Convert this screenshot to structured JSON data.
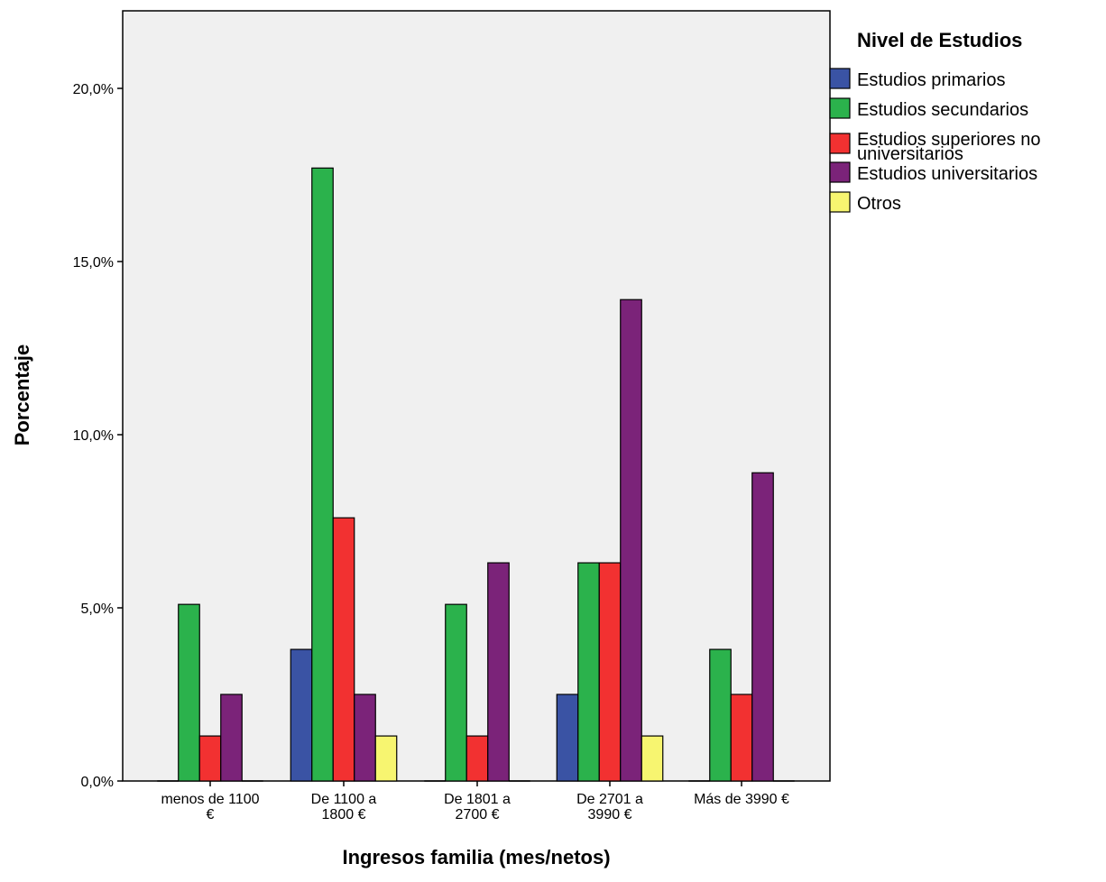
{
  "chart_data": {
    "type": "bar",
    "xlabel": "Ingresos familia (mes/netos)",
    "ylabel": "Porcentaje",
    "ylim": [
      0,
      22
    ],
    "yticks": [
      "0,0%",
      "5,0%",
      "10,0%",
      "15,0%",
      "20,0%"
    ],
    "ytick_values": [
      0,
      5,
      10,
      15,
      20
    ],
    "categories": [
      [
        "menos de 1100",
        "€"
      ],
      [
        "De 1100 a",
        "1800 €"
      ],
      [
        "De 1801 a",
        "2700 €"
      ],
      [
        "De 2701 a",
        "3990 €"
      ],
      [
        "Más de 3990 €"
      ]
    ],
    "legend": {
      "title": "Nivel de Estudios",
      "position": "right"
    },
    "grid": false,
    "series": [
      {
        "name": "Estudios primarios",
        "label_lines": [
          "Estudios primarios"
        ],
        "color": "#3a53a4",
        "values": [
          0,
          3.8,
          0,
          2.5,
          0
        ]
      },
      {
        "name": "Estudios secundarios",
        "label_lines": [
          "Estudios secundarios"
        ],
        "color": "#2bb24c",
        "values": [
          5.1,
          17.7,
          5.1,
          6.3,
          3.8
        ]
      },
      {
        "name": "Estudios superiores no universitarios",
        "label_lines": [
          "Estudios superiores no",
          "universitarios"
        ],
        "color": "#f23131",
        "values": [
          1.3,
          7.6,
          1.3,
          6.3,
          2.5
        ]
      },
      {
        "name": "Estudios universitarios",
        "label_lines": [
          "Estudios universitarios"
        ],
        "color": "#7b2379",
        "values": [
          2.5,
          2.5,
          6.3,
          13.9,
          8.9
        ]
      },
      {
        "name": "Otros",
        "label_lines": [
          "Otros"
        ],
        "color": "#f7f570",
        "values": [
          0,
          1.3,
          0,
          1.3,
          0
        ]
      }
    ],
    "plot_background": "#f0f0f0"
  }
}
